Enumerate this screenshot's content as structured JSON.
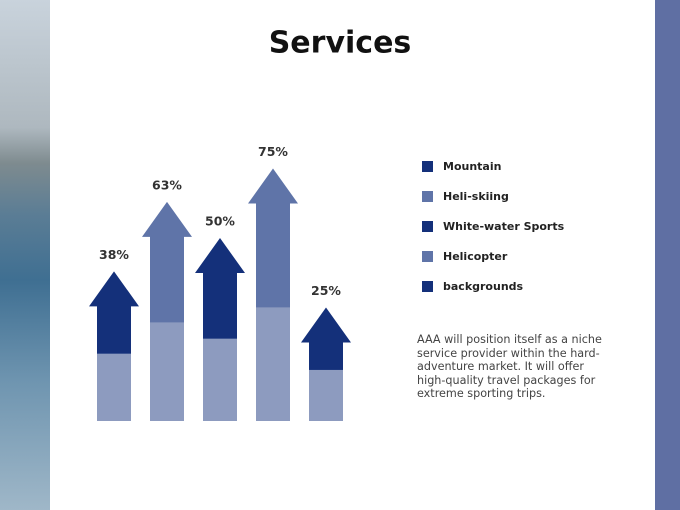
{
  "chart_data": {
    "type": "arrow",
    "title": "Services",
    "categories": [
      "Mountain",
      "Heli-skiing",
      "White-water Sports",
      "Helicopter",
      "backgrounds"
    ],
    "values": [
      38,
      63,
      50,
      75,
      25
    ],
    "value_labels": [
      "38%",
      "63%",
      "50%",
      "75%",
      "25%"
    ],
    "colors": [
      "#14307a",
      "#5f74a8",
      "#14307a",
      "#5f74a8",
      "#14307a"
    ],
    "base_color": "#8d9bbf",
    "legend": "right"
  },
  "description": "AAA will position itself as a niche service provider within the hard-adventure market. It will offer high-quality travel packages for extreme sporting trips."
}
